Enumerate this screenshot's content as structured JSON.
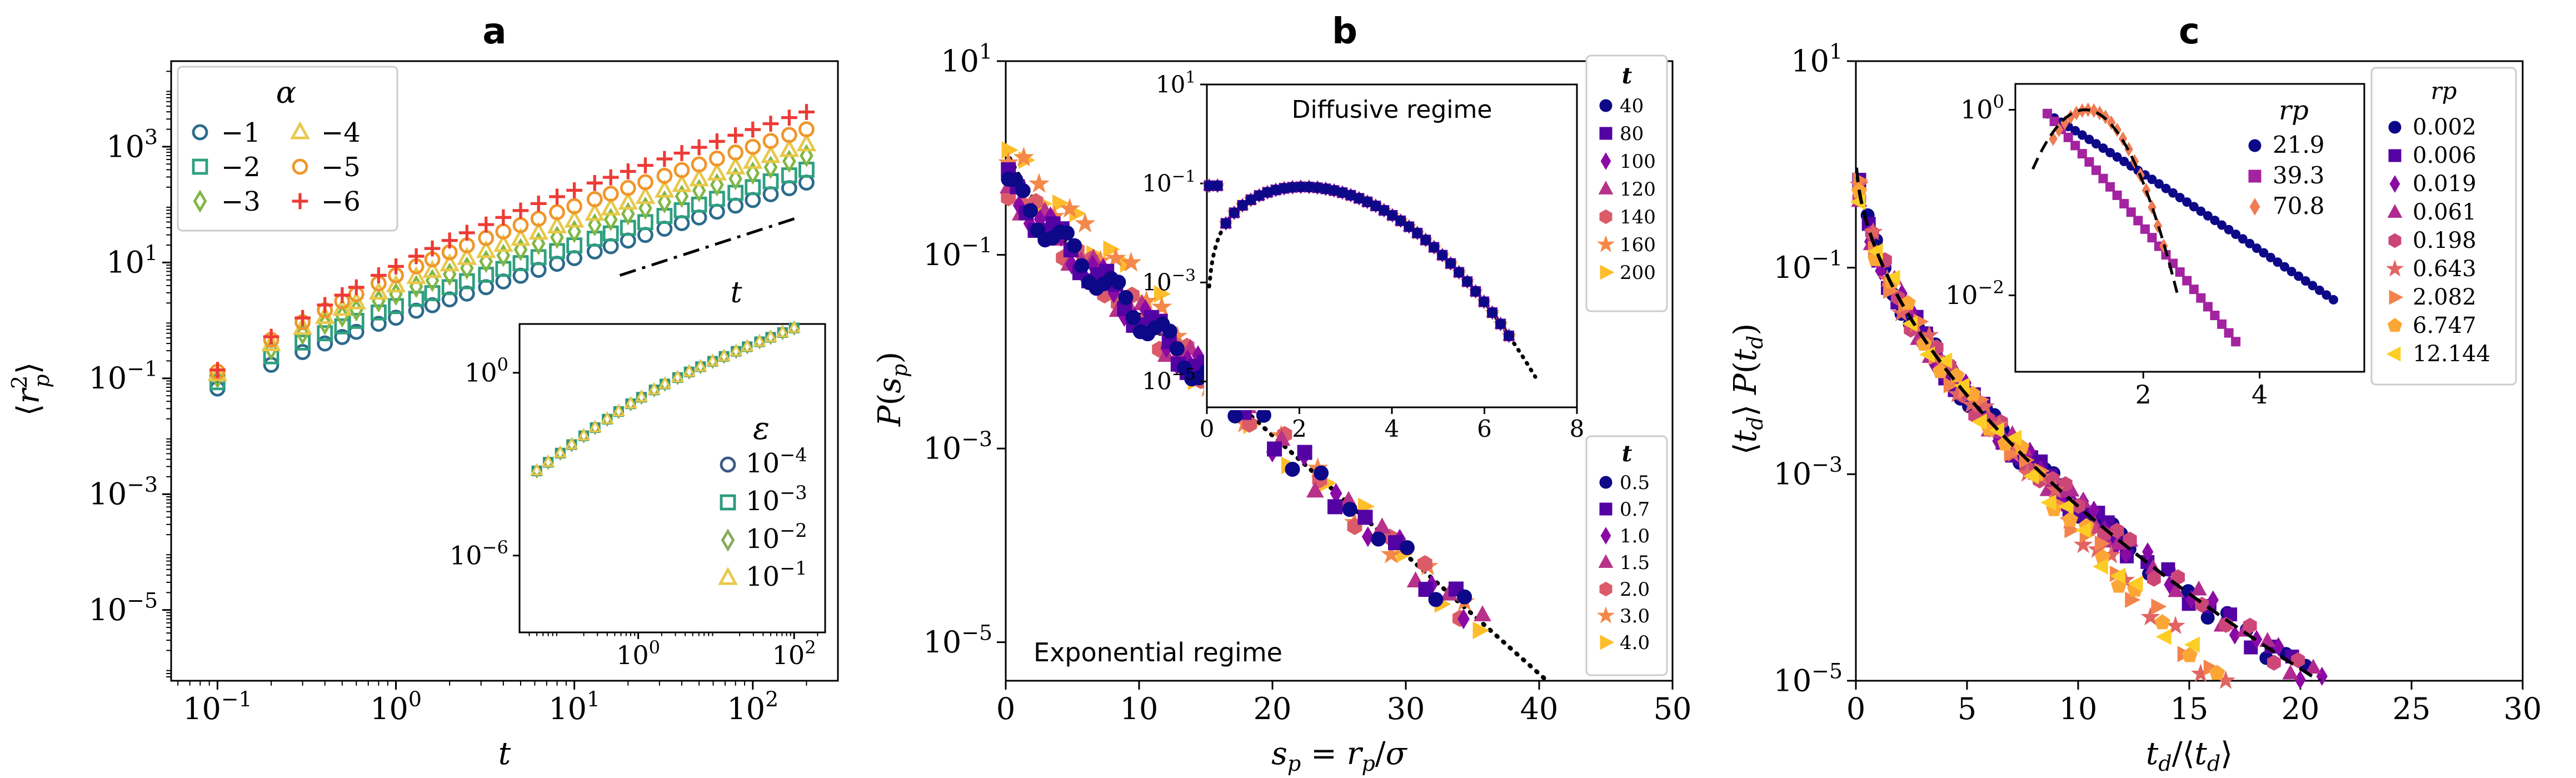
{
  "palette": {
    "alpha": [
      "#2b6b8c",
      "#2fa07f",
      "#80b745",
      "#e8c84a",
      "#f0962b",
      "#ee3a35"
    ],
    "alphaMarkers": [
      "o",
      "s",
      "d",
      "^",
      "o",
      "+"
    ],
    "eps": [
      "#3c5a86",
      "#2d9a7d",
      "#86ad5c",
      "#e8c84a"
    ],
    "epsMarkers": [
      "o",
      "s",
      "d",
      "^"
    ],
    "plasma": [
      "#0d0887",
      "#5302a3",
      "#8b0aa5",
      "#b83289",
      "#db5c68",
      "#f48849",
      "#febd2a"
    ],
    "plasmaMarkers": [
      "o",
      "s",
      "d",
      "^",
      "h",
      "*",
      ">"
    ],
    "plasma9": [
      "#0d0887",
      "#5302a3",
      "#8b0aa5",
      "#b12a90",
      "#cc4778",
      "#e16462",
      "#f2844b",
      "#fca636",
      "#fcce25"
    ],
    "plasma9Markers": [
      "o",
      "s",
      "d",
      "^",
      "h",
      "*",
      ">",
      "p",
      "<"
    ],
    "rp3": [
      "#0d0887",
      "#a323a0",
      "#ee7b51"
    ],
    "rp3Markers": [
      "o",
      "s",
      "d"
    ]
  },
  "chart_data": [
    {
      "id": "a",
      "type": "scatter",
      "title": "a",
      "xlabel": "t",
      "ylabel": "⟨r²p⟩",
      "xscale": "log",
      "yscale": "log",
      "xlim": [
        0.055,
        300
      ],
      "ylim": [
        6e-07,
        30000.0
      ],
      "xticks": [
        {
          "v": 0.1,
          "b": "10",
          "e": "−1"
        },
        {
          "v": 1,
          "b": "10",
          "e": "0"
        },
        {
          "v": 10,
          "b": "10",
          "e": "1"
        },
        {
          "v": 100,
          "b": "10",
          "e": "2"
        }
      ],
      "yticks": [
        {
          "v": 1e-05,
          "b": "10",
          "e": "−5"
        },
        {
          "v": 0.001,
          "b": "10",
          "e": "−3"
        },
        {
          "v": 0.1,
          "b": "10",
          "e": "−1"
        },
        {
          "v": 10,
          "b": "10",
          "e": "1"
        },
        {
          "v": 1000,
          "b": "10",
          "e": "3"
        }
      ],
      "legend": {
        "title": "α",
        "position": "top-left",
        "labels": [
          "−1",
          "−2",
          "−3",
          "−4",
          "−5",
          "−6"
        ]
      },
      "series_model": {
        "t": [
          0.1,
          0.2,
          0.3,
          0.4,
          0.5,
          0.6,
          0.8,
          1.0,
          1.3,
          1.6,
          2.0,
          2.5,
          3.2,
          4.0,
          5.0,
          6.3,
          8.0,
          10,
          13,
          16,
          20,
          25,
          32,
          40,
          50,
          63,
          80,
          100,
          126,
          160,
          200
        ],
        "D_short": 15,
        "D_long": [
          1.2,
          2.0,
          3.5,
          5.5,
          10,
          20
        ]
      },
      "reference_line": {
        "label": "t",
        "x": [
          18,
          180
        ],
        "y": [
          6,
          60
        ],
        "style": "dash-dot"
      }
    },
    {
      "id": "a_inset",
      "type": "scatter",
      "xscale": "log",
      "yscale": "log",
      "xlim": [
        0.03,
        250
      ],
      "ylim": [
        3e-09,
        40
      ],
      "xticks": [
        {
          "v": 1,
          "b": "10",
          "e": "0"
        },
        {
          "v": 100,
          "b": "10",
          "e": "2"
        }
      ],
      "yticks": [
        {
          "v": 1e-06,
          "b": "10",
          "e": "−6"
        },
        {
          "v": 1,
          "b": "10",
          "e": "0"
        }
      ],
      "legend": {
        "title": "ε",
        "position": "bottom-right",
        "labels": [
          {
            "b": "10",
            "e": "−4"
          },
          {
            "b": "10",
            "e": "−3"
          },
          {
            "b": "10",
            "e": "−2"
          },
          {
            "b": "10",
            "e": "−1"
          }
        ]
      },
      "series_model": {
        "t": [
          0.05,
          0.07,
          0.1,
          0.14,
          0.2,
          0.28,
          0.4,
          0.56,
          0.8,
          1.1,
          1.6,
          2.2,
          3.2,
          4.5,
          6.3,
          9,
          12.6,
          18,
          25,
          36,
          50,
          71,
          100,
          140,
          200
        ],
        "floor": [
          1e-08,
          1e-07,
          1e-06,
          1e-05
        ]
      }
    },
    {
      "id": "b",
      "type": "scatter",
      "title": "b",
      "xlabel": "sp = rp/σ",
      "ylabel": "P(sp)",
      "xscale": "linear",
      "yscale": "log",
      "xlim": [
        0,
        50
      ],
      "ylim": [
        4e-06,
        10
      ],
      "xticks": [
        {
          "v": 0,
          "t": "0"
        },
        {
          "v": 10,
          "t": "10"
        },
        {
          "v": 20,
          "t": "20"
        },
        {
          "v": 30,
          "t": "30"
        },
        {
          "v": 40,
          "t": "40"
        },
        {
          "v": 50,
          "t": "50"
        }
      ],
      "yticks": [
        {
          "v": 1e-05,
          "b": "10",
          "e": "−5"
        },
        {
          "v": 0.001,
          "b": "10",
          "e": "−3"
        },
        {
          "v": 0.1,
          "b": "10",
          "e": "−1"
        },
        {
          "v": 10,
          "b": "10",
          "e": "1"
        }
      ],
      "annotation": "Exponential regime",
      "legend": {
        "title": "t",
        "position": "bottom-right",
        "labels": [
          "0.5",
          "0.7",
          "1.0",
          "1.5",
          "2.0",
          "3.0",
          "4.0"
        ]
      },
      "fit_line": {
        "type": "exponential",
        "A": 1.0,
        "k": 0.28,
        "style": "dotted"
      }
    },
    {
      "id": "b_inset",
      "type": "scatter",
      "xscale": "linear",
      "yscale": "log",
      "xlim": [
        0,
        8
      ],
      "ylim": [
        3e-06,
        10
      ],
      "xticks": [
        {
          "v": 0,
          "t": "0"
        },
        {
          "v": 2,
          "t": "2"
        },
        {
          "v": 4,
          "t": "4"
        },
        {
          "v": 6,
          "t": "6"
        },
        {
          "v": 8,
          "t": "8"
        }
      ],
      "yticks": [
        {
          "v": 1e-05,
          "b": "10",
          "e": "−5"
        },
        {
          "v": 0.001,
          "b": "10",
          "e": "−3"
        },
        {
          "v": 0.1,
          "b": "10",
          "e": "−1"
        },
        {
          "v": 10,
          "b": "10",
          "e": "1"
        }
      ],
      "annotation": "Diffusive regime",
      "legend": {
        "title": "t",
        "position": "right-outside",
        "labels": [
          "40",
          "80",
          "100",
          "120",
          "140",
          "160",
          "200"
        ]
      },
      "fit_line": {
        "type": "gaussian",
        "style": "dotted"
      }
    },
    {
      "id": "c",
      "type": "scatter",
      "title": "c",
      "xlabel": "td/⟨td⟩",
      "ylabel": "⟨td⟩ P(td)",
      "xscale": "linear",
      "yscale": "log",
      "xlim": [
        0,
        30
      ],
      "ylim": [
        1e-05,
        10
      ],
      "xticks": [
        {
          "v": 0,
          "t": "0"
        },
        {
          "v": 5,
          "t": "5"
        },
        {
          "v": 10,
          "t": "10"
        },
        {
          "v": 15,
          "t": "15"
        },
        {
          "v": 20,
          "t": "20"
        },
        {
          "v": 25,
          "t": "25"
        },
        {
          "v": 30,
          "t": "30"
        }
      ],
      "yticks": [
        {
          "v": 1e-05,
          "b": "10",
          "e": "−5"
        },
        {
          "v": 0.001,
          "b": "10",
          "e": "−3"
        },
        {
          "v": 0.1,
          "b": "10",
          "e": "−1"
        },
        {
          "v": 10,
          "b": "10",
          "e": "1"
        }
      ],
      "legend": {
        "title": "rp",
        "position": "right-outside",
        "labels": [
          "0.002",
          "0.006",
          "0.019",
          "0.061",
          "0.198",
          "0.643",
          "2.082",
          "6.747",
          "12.144"
        ]
      },
      "fit_line": {
        "type": "stretched-exponential",
        "style": "dashed"
      }
    },
    {
      "id": "c_inset",
      "type": "scatter",
      "xscale": "linear",
      "yscale": "log",
      "xlim": [
        -0.2,
        5.8
      ],
      "ylim": [
        0.0015,
        1.9
      ],
      "xticks": [
        {
          "v": 2,
          "t": "2"
        },
        {
          "v": 4,
          "t": "4"
        }
      ],
      "yticks": [
        {
          "v": 0.01,
          "b": "10",
          "e": "−2"
        },
        {
          "v": 1,
          "b": "10",
          "e": "0"
        }
      ],
      "legend": {
        "title": "rp",
        "position": "top-right",
        "labels": [
          "21.9",
          "39.3",
          "70.8"
        ]
      },
      "fit_line": {
        "type": "gaussian",
        "style": "dashed"
      }
    }
  ]
}
